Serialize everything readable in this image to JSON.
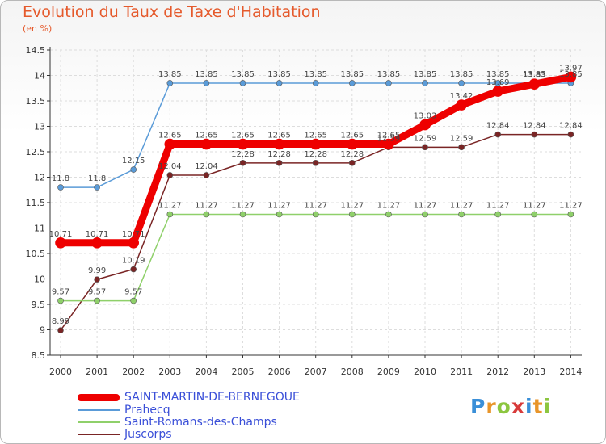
{
  "title": "Evolution du Taux de Taxe d'Habitation",
  "subtitle": "(en %)",
  "logo": "Proxiti",
  "chart_data": {
    "type": "line",
    "title": "Evolution du Taux de Taxe d'Habitation",
    "ylabel": "(en %)",
    "xlabel": "",
    "categories": [
      "2000",
      "2001",
      "2002",
      "2003",
      "2004",
      "2005",
      "2006",
      "2007",
      "2008",
      "2009",
      "2010",
      "2011",
      "2012",
      "2013",
      "2014"
    ],
    "ylim": [
      8.5,
      14.5
    ],
    "yticks": [
      "8.5",
      "9",
      "9.5",
      "10",
      "10.5",
      "11",
      "11.5",
      "12",
      "12.5",
      "13",
      "13.5",
      "14",
      "14.5"
    ],
    "grid": true,
    "legend_position": "bottom",
    "series": [
      {
        "name": "SAINT-MARTIN-DE-BERNEGOUE",
        "color": "#ee0000",
        "values": [
          10.71,
          10.71,
          10.71,
          12.65,
          12.65,
          12.65,
          12.65,
          12.65,
          12.65,
          12.65,
          13.03,
          13.42,
          13.69,
          13.83,
          13.97
        ],
        "labels": [
          "10.71",
          "10.71",
          "10.71",
          "12.65",
          "12.65",
          "12.65",
          "12.65",
          "12.65",
          "12.65",
          "12.65",
          "13.03",
          "13.42",
          "13.69",
          "13.83",
          "13.97"
        ]
      },
      {
        "name": "Prahecq",
        "color": "#5a9bd8",
        "values": [
          11.8,
          11.8,
          12.15,
          13.85,
          13.85,
          13.85,
          13.85,
          13.85,
          13.85,
          13.85,
          13.85,
          13.85,
          13.85,
          13.85,
          13.85
        ],
        "labels": [
          "11.8",
          "11.8",
          "12.15",
          "13.85",
          "13.85",
          "13.85",
          "13.85",
          "13.85",
          "13.85",
          "13.85",
          "13.85",
          "13.85",
          "13.85",
          "13.85",
          "13.85"
        ]
      },
      {
        "name": "Saint-Romans-des-Champs",
        "color": "#8fd06a",
        "values": [
          9.57,
          9.57,
          9.57,
          11.27,
          11.27,
          11.27,
          11.27,
          11.27,
          11.27,
          11.27,
          11.27,
          11.27,
          11.27,
          11.27,
          11.27
        ],
        "labels": [
          "9.57",
          "9.57",
          "9.57",
          "11.27",
          "11.27",
          "11.27",
          "11.27",
          "11.27",
          "11.27",
          "11.27",
          "11.27",
          "11.27",
          "11.27",
          "11.27",
          "11.27"
        ]
      },
      {
        "name": "Juscorps",
        "color": "#7a2525",
        "values": [
          8.99,
          9.99,
          10.19,
          12.04,
          12.04,
          12.28,
          12.28,
          12.28,
          12.28,
          12.59,
          12.59,
          12.59,
          12.84,
          12.84,
          12.84
        ],
        "labels": [
          "8.99",
          "9.99",
          "10.19",
          "12.04",
          "12.04",
          "12.28",
          "12.28",
          "12.28",
          "12.28",
          "12.59",
          "12.59",
          "12.59",
          "12.84",
          "12.84",
          "12.84"
        ]
      }
    ]
  }
}
